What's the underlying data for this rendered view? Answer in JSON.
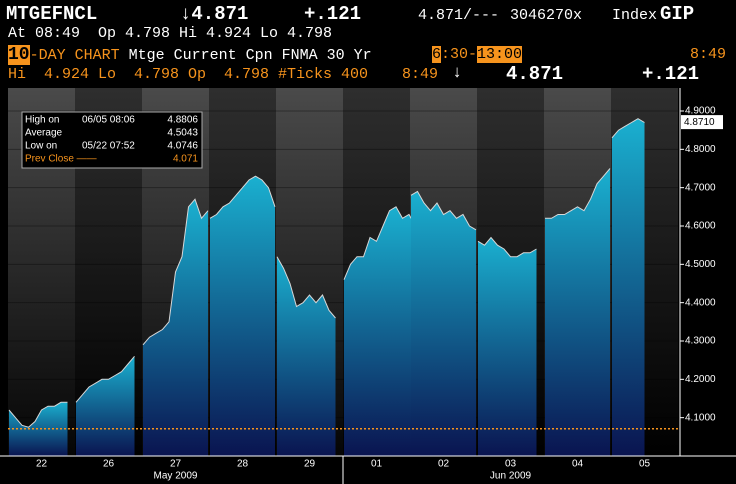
{
  "header": {
    "ticker": "MTGEFNCL",
    "last": "↓4.871",
    "change": "+.121",
    "bid_ask": "4.871/---",
    "volume": "3046270x",
    "sector": "Index",
    "function": "GIP",
    "line2": "At 08:49  Op 4.798 Hi 4.924 Lo 4.798",
    "period_num": "10",
    "period_text": "-DAY CHART",
    "description": "Mtge Current Cpn FNMA 30 Yr",
    "start_hour": "6",
    "start_min": ":30-",
    "end_hour": "13",
    "end_min": ":00",
    "time_right": "8:49",
    "line4_stats": "Hi  4.924 Lo  4.798 Op  4.798 #Ticks 400",
    "line4_time": "8:49",
    "line4_arrow": "↓",
    "line4_last": "4.871",
    "line4_change": "+.121"
  },
  "chart_data": {
    "type": "area",
    "categories": [
      "22",
      "26",
      "27",
      "28",
      "29",
      "01",
      "02",
      "03",
      "04",
      "05"
    ],
    "months": [
      {
        "label": "May 2009",
        "from": 0,
        "to": 4
      },
      {
        "label": "Jun 2009",
        "from": 5,
        "to": 9
      }
    ],
    "values": [
      [
        4.12,
        4.1,
        4.08,
        4.075,
        4.09,
        4.12,
        4.13,
        4.13,
        4.14,
        4.14
      ],
      [
        4.14,
        4.16,
        4.18,
        4.19,
        4.2,
        4.2,
        4.21,
        4.22,
        4.24,
        4.26
      ],
      [
        4.29,
        4.31,
        4.32,
        4.33,
        4.35,
        4.48,
        4.52,
        4.65,
        4.67,
        4.62,
        4.64
      ],
      [
        4.62,
        4.63,
        4.65,
        4.66,
        4.68,
        4.7,
        4.72,
        4.73,
        4.72,
        4.7,
        4.65
      ],
      [
        4.52,
        4.49,
        4.45,
        4.39,
        4.4,
        4.42,
        4.4,
        4.42,
        4.38,
        4.36
      ],
      [
        4.46,
        4.5,
        4.52,
        4.52,
        4.57,
        4.56,
        4.6,
        4.64,
        4.65,
        4.62,
        4.63,
        4.6
      ],
      [
        4.68,
        4.69,
        4.66,
        4.64,
        4.66,
        4.63,
        4.64,
        4.62,
        4.63,
        4.6,
        4.59
      ],
      [
        4.56,
        4.55,
        4.57,
        4.55,
        4.54,
        4.52,
        4.52,
        4.53,
        4.53,
        4.54
      ],
      [
        4.62,
        4.62,
        4.63,
        4.63,
        4.64,
        4.65,
        4.64,
        4.67,
        4.71,
        4.73,
        4.75
      ],
      [
        4.83,
        4.85,
        4.86,
        4.87,
        4.88,
        4.87
      ]
    ],
    "ylim": [
      4.0,
      4.96
    ],
    "yticks": [
      {
        "value": 4.1,
        "label": "4.1000"
      },
      {
        "value": 4.2,
        "label": "4.2000"
      },
      {
        "value": 4.3,
        "label": "4.3000"
      },
      {
        "value": 4.4,
        "label": "4.4000"
      },
      {
        "value": 4.5,
        "label": "4.5000"
      },
      {
        "value": 4.6,
        "label": "4.6000"
      },
      {
        "value": 4.7,
        "label": "4.7000"
      },
      {
        "value": 4.8,
        "label": "4.8000"
      },
      {
        "value": 4.9,
        "label": "4.9000"
      }
    ],
    "last_price": {
      "value": 4.871,
      "label": "4.8710"
    },
    "prev_close": 4.071,
    "prev_close_color": "#f7941d",
    "stats": [
      {
        "label": "High on",
        "time": "06/05 08:06",
        "value": 4.8806
      },
      {
        "label": "Average",
        "value": 4.5043
      },
      {
        "label": "Low on",
        "time": "05/22 07:52",
        "value": 4.0746
      },
      {
        "label": "Prev Close ——",
        "value": 4.071,
        "highlight": true
      }
    ]
  }
}
